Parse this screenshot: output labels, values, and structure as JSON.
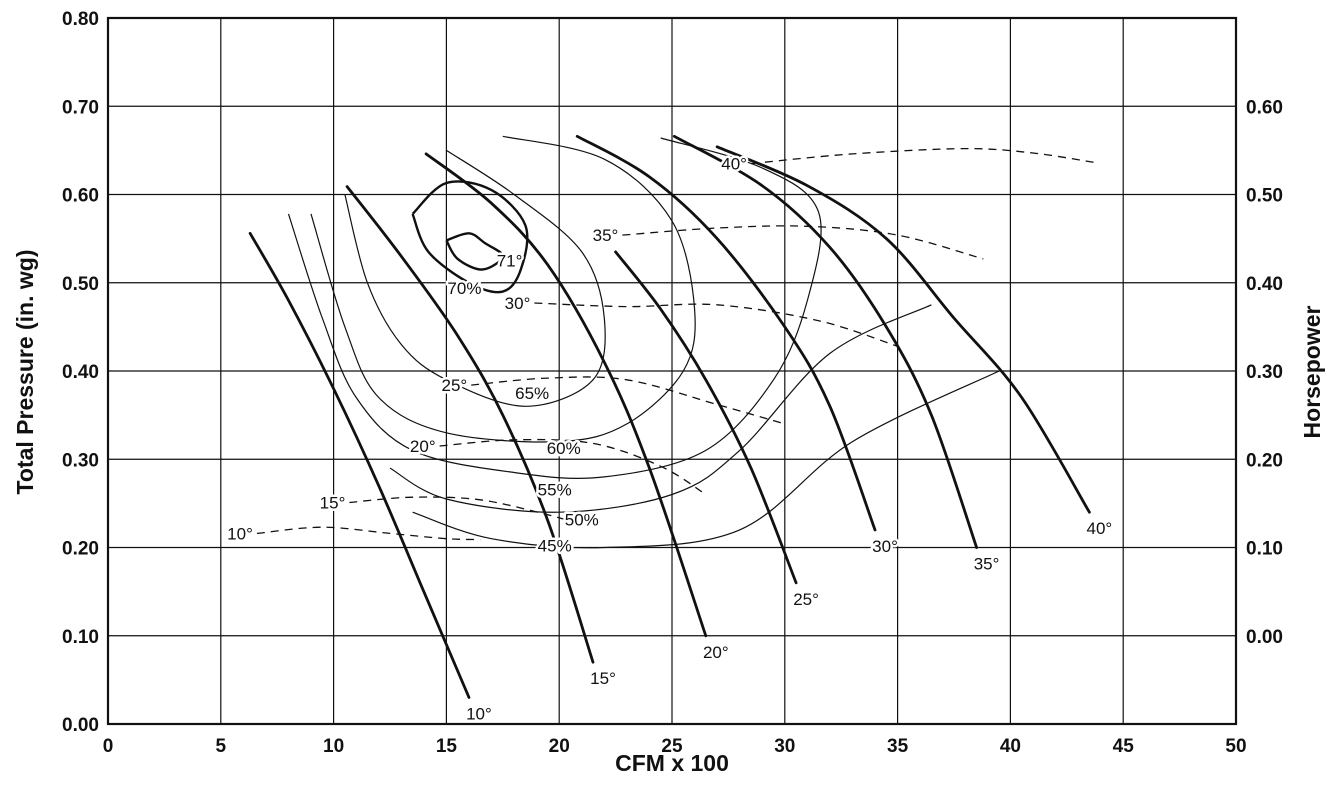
{
  "chart_data": {
    "type": "line",
    "title": "",
    "xlabel": "CFM x 100",
    "ylabel": "Total Pressure (in. wg)",
    "y2label": "Horsepower",
    "xlim": [
      0,
      50
    ],
    "ylim": [
      0,
      0.8
    ],
    "y2lim": [
      -0.1,
      0.7
    ],
    "grid": true,
    "x_ticks": [
      "0",
      "5",
      "10",
      "15",
      "20",
      "25",
      "30",
      "35",
      "40",
      "45",
      "50"
    ],
    "y_ticks": [
      "0.00",
      "0.10",
      "0.20",
      "0.30",
      "0.40",
      "0.50",
      "0.60",
      "0.70",
      "0.80"
    ],
    "y2_ticks": [
      "0.00",
      "0.10",
      "0.20",
      "0.30",
      "0.40",
      "0.50",
      "0.60"
    ],
    "pressure_curves": [
      {
        "name": "10°",
        "points": [
          [
            6.3,
            0.556
          ],
          [
            8.0,
            0.48
          ],
          [
            10.0,
            0.38
          ],
          [
            12.0,
            0.27
          ],
          [
            14.0,
            0.15
          ],
          [
            16.0,
            0.03
          ]
        ]
      },
      {
        "name": "15°",
        "points": [
          [
            10.6,
            0.609
          ],
          [
            13.0,
            0.53
          ],
          [
            15.5,
            0.44
          ],
          [
            17.5,
            0.35
          ],
          [
            19.5,
            0.23
          ],
          [
            21.5,
            0.07
          ]
        ]
      },
      {
        "name": "20°",
        "points": [
          [
            14.1,
            0.646
          ],
          [
            17.0,
            0.59
          ],
          [
            19.5,
            0.52
          ],
          [
            22.0,
            0.41
          ],
          [
            24.0,
            0.29
          ],
          [
            26.5,
            0.1
          ]
        ]
      },
      {
        "name": "25°",
        "points": [
          [
            22.5,
            0.535
          ],
          [
            24.5,
            0.47
          ],
          [
            26.5,
            0.39
          ],
          [
            28.5,
            0.29
          ],
          [
            30.5,
            0.16
          ]
        ]
      },
      {
        "name": "30°",
        "points": [
          [
            20.8,
            0.666
          ],
          [
            24.0,
            0.62
          ],
          [
            27.0,
            0.55
          ],
          [
            30.0,
            0.45
          ],
          [
            32.0,
            0.36
          ],
          [
            34.0,
            0.22
          ]
        ]
      },
      {
        "name": "35°",
        "points": [
          [
            25.1,
            0.666
          ],
          [
            29.0,
            0.61
          ],
          [
            32.0,
            0.54
          ],
          [
            34.5,
            0.45
          ],
          [
            36.5,
            0.35
          ],
          [
            38.5,
            0.2
          ]
        ]
      },
      {
        "name": "40°",
        "points": [
          [
            27.0,
            0.654
          ],
          [
            31.0,
            0.61
          ],
          [
            34.5,
            0.55
          ],
          [
            37.5,
            0.46
          ],
          [
            40.5,
            0.37
          ],
          [
            43.5,
            0.24
          ]
        ]
      }
    ],
    "horsepower_curves": [
      {
        "name": "10°",
        "points": [
          [
            6.6,
            0.216
          ],
          [
            9.5,
            0.223
          ],
          [
            12.5,
            0.216
          ],
          [
            15.0,
            0.21
          ],
          [
            16.5,
            0.209
          ]
        ]
      },
      {
        "name": "15°",
        "points": [
          [
            10.7,
            0.251
          ],
          [
            13.5,
            0.257
          ],
          [
            16.5,
            0.254
          ],
          [
            19.5,
            0.237
          ],
          [
            21.0,
            0.226
          ]
        ]
      },
      {
        "name": "20°",
        "points": [
          [
            14.7,
            0.315
          ],
          [
            18.0,
            0.322
          ],
          [
            21.5,
            0.318
          ],
          [
            24.5,
            0.292
          ],
          [
            26.5,
            0.26
          ]
        ]
      },
      {
        "name": "25°",
        "points": [
          [
            16.1,
            0.384
          ],
          [
            19.5,
            0.392
          ],
          [
            23.0,
            0.39
          ],
          [
            27.0,
            0.362
          ],
          [
            30.0,
            0.34
          ]
        ]
      },
      {
        "name": "30°",
        "points": [
          [
            18.9,
            0.477
          ],
          [
            23.0,
            0.473
          ],
          [
            27.0,
            0.475
          ],
          [
            31.5,
            0.457
          ],
          [
            35.0,
            0.428
          ]
        ]
      },
      {
        "name": "35°",
        "points": [
          [
            22.8,
            0.554
          ],
          [
            27.0,
            0.562
          ],
          [
            31.0,
            0.564
          ],
          [
            35.0,
            0.554
          ],
          [
            38.8,
            0.527
          ]
        ]
      },
      {
        "name": "40°",
        "points": [
          [
            28.5,
            0.635
          ],
          [
            33.0,
            0.646
          ],
          [
            38.0,
            0.652
          ],
          [
            41.0,
            0.647
          ],
          [
            43.8,
            0.636
          ]
        ]
      }
    ],
    "efficiency_curves": [
      {
        "name": "71°",
        "points": [
          [
            15.0,
            0.548
          ],
          [
            16.0,
            0.556
          ],
          [
            16.7,
            0.545
          ],
          [
            17.5,
            0.53
          ],
          [
            16.6,
            0.515
          ],
          [
            15.5,
            0.527
          ],
          [
            15.0,
            0.548
          ]
        ]
      },
      {
        "name": "70%",
        "points": [
          [
            13.5,
            0.578
          ],
          [
            15.0,
            0.613
          ],
          [
            17.0,
            0.605
          ],
          [
            18.5,
            0.565
          ],
          [
            18.3,
            0.515
          ],
          [
            17.5,
            0.49
          ],
          [
            16.0,
            0.5
          ],
          [
            14.2,
            0.535
          ],
          [
            13.5,
            0.578
          ]
        ]
      },
      {
        "name": "65%",
        "points": [
          [
            10.5,
            0.6
          ],
          [
            11.5,
            0.5
          ],
          [
            13.0,
            0.43
          ],
          [
            15.0,
            0.39
          ],
          [
            18.5,
            0.36
          ],
          [
            21.5,
            0.39
          ],
          [
            22.0,
            0.46
          ],
          [
            21.0,
            0.535
          ],
          [
            18.0,
            0.6
          ],
          [
            15.0,
            0.65
          ]
        ]
      },
      {
        "name": "60%",
        "points": [
          [
            9.0,
            0.578
          ],
          [
            10.5,
            0.45
          ],
          [
            12.0,
            0.37
          ],
          [
            15.0,
            0.33
          ],
          [
            20.0,
            0.32
          ],
          [
            23.0,
            0.34
          ],
          [
            25.5,
            0.4
          ],
          [
            26.0,
            0.47
          ],
          [
            25.0,
            0.57
          ],
          [
            22.0,
            0.64
          ],
          [
            17.5,
            0.666
          ]
        ]
      },
      {
        "name": "55%",
        "points": [
          [
            8.0,
            0.578
          ],
          [
            9.5,
            0.46
          ],
          [
            11.0,
            0.37
          ],
          [
            13.5,
            0.31
          ],
          [
            18.0,
            0.285
          ],
          [
            22.0,
            0.28
          ],
          [
            26.5,
            0.31
          ],
          [
            29.5,
            0.39
          ],
          [
            31.0,
            0.48
          ],
          [
            31.5,
            0.58
          ],
          [
            29.0,
            0.63
          ],
          [
            24.5,
            0.664
          ]
        ]
      },
      {
        "name": "50%",
        "points": [
          [
            12.5,
            0.29
          ],
          [
            15.0,
            0.255
          ],
          [
            20.0,
            0.24
          ],
          [
            25.0,
            0.26
          ],
          [
            28.0,
            0.31
          ],
          [
            32.0,
            0.42
          ],
          [
            36.5,
            0.475
          ]
        ]
      },
      {
        "name": "45%",
        "points": [
          [
            13.5,
            0.24
          ],
          [
            17.0,
            0.21
          ],
          [
            22.0,
            0.2
          ],
          [
            28.0,
            0.22
          ],
          [
            33.0,
            0.32
          ],
          [
            39.5,
            0.4
          ]
        ]
      }
    ],
    "efficiency_labels": [
      "71°",
      "70%",
      "65%",
      "60%",
      "55%",
      "50%",
      "45%"
    ]
  }
}
